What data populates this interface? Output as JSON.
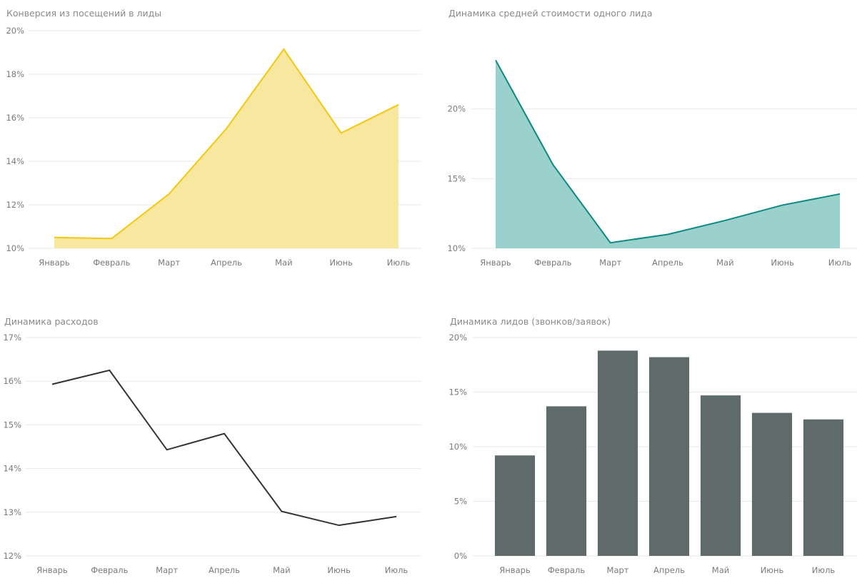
{
  "chart_data": [
    {
      "type": "area",
      "title": "Конверсия из посещений в лиды",
      "categories": [
        "Январь",
        "Февраль",
        "Март",
        "Апрель",
        "Май",
        "Июнь",
        "Июль"
      ],
      "values": [
        10.5,
        10.45,
        12.5,
        15.5,
        19.15,
        15.3,
        16.6
      ],
      "ylim": [
        10,
        20
      ],
      "yticks": [
        10,
        12,
        14,
        16,
        18,
        20
      ],
      "ytick_labels": [
        "10%",
        "12%",
        "14%",
        "16%",
        "18%",
        "20%"
      ],
      "line_color": "#f2c811",
      "fill_color": "#f8e79e",
      "grid": true
    },
    {
      "type": "area",
      "title": "Динамика средней стоимости одного лида",
      "categories": [
        "Январь",
        "Февраль",
        "Март",
        "Апрель",
        "Май",
        "Июнь",
        "Июль"
      ],
      "values": [
        23.5,
        16.0,
        10.4,
        11.0,
        12.0,
        13.1,
        13.9
      ],
      "ylim": [
        10,
        25
      ],
      "yticks": [
        10,
        15,
        20
      ],
      "ytick_labels": [
        "10%",
        "15%",
        "20%"
      ],
      "line_color": "#0b8a80",
      "fill_color": "#9bd1cc",
      "grid": true
    },
    {
      "type": "line",
      "title": "Динамика расходов",
      "categories": [
        "Январь",
        "Февраль",
        "Март",
        "Апрель",
        "Май",
        "Июнь",
        "Июль"
      ],
      "values": [
        15.93,
        16.25,
        14.43,
        14.8,
        13.02,
        12.7,
        12.9
      ],
      "ylim": [
        12,
        17
      ],
      "yticks": [
        12,
        13,
        14,
        15,
        16,
        17
      ],
      "ytick_labels": [
        "12%",
        "13%",
        "14%",
        "15%",
        "16%",
        "17%"
      ],
      "line_color": "#333333",
      "grid": true
    },
    {
      "type": "bar",
      "title": "Динамика лидов (звонков/заявок)",
      "categories": [
        "Январь",
        "Февраль",
        "Март",
        "Апрель",
        "Май",
        "Июнь",
        "Июль"
      ],
      "values": [
        9.2,
        13.7,
        18.8,
        18.2,
        14.7,
        13.1,
        12.5
      ],
      "ylim": [
        0,
        20
      ],
      "yticks": [
        0,
        5,
        10,
        15,
        20
      ],
      "ytick_labels": [
        "0%",
        "5%",
        "10%",
        "15%",
        "20%"
      ],
      "bar_color": "#5f6b6b",
      "grid": true
    }
  ]
}
